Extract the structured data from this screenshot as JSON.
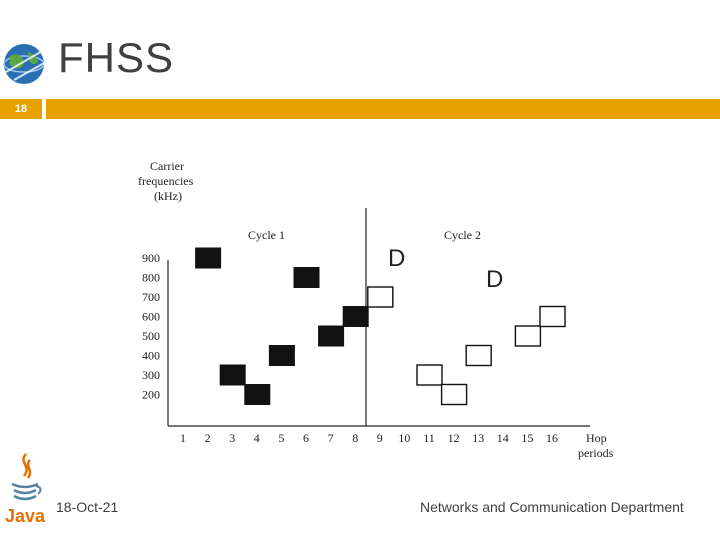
{
  "slide": {
    "title": "FHSS",
    "number": "18",
    "date": "18-Oct-21",
    "footer": "Networks and Communication Department",
    "java_logo_text": "Java"
  },
  "colors": {
    "accent": "#e8a200",
    "text": "#404040"
  },
  "chart_data": {
    "type": "diagram",
    "ylabel": [
      "Carrier",
      "frequencies",
      "(kHz)"
    ],
    "xlabel": [
      "Hop",
      "periods"
    ],
    "y_ticks": [
      900,
      800,
      700,
      600,
      500,
      400,
      300,
      200
    ],
    "x_ticks": [
      1,
      2,
      3,
      4,
      5,
      6,
      7,
      8,
      9,
      10,
      11,
      12,
      13,
      14,
      15,
      16
    ],
    "cycles": [
      {
        "label": "Cycle 1",
        "hops": [
          {
            "period": 2,
            "freq": 900
          },
          {
            "period": 3,
            "freq": 300
          },
          {
            "period": 4,
            "freq": 200
          },
          {
            "period": 5,
            "freq": 400
          },
          {
            "period": 6,
            "freq": 800
          },
          {
            "period": 7,
            "freq": 500
          },
          {
            "period": 8,
            "freq": 600
          }
        ]
      },
      {
        "label": "Cycle 2",
        "hops": [
          {
            "period": 9,
            "freq": 700
          },
          {
            "period": 11,
            "freq": 300
          },
          {
            "period": 12,
            "freq": 200
          },
          {
            "period": 13,
            "freq": 400
          },
          {
            "period": 15,
            "freq": 500
          },
          {
            "period": 16,
            "freq": 600
          }
        ]
      }
    ],
    "annotations": [
      "D",
      "D"
    ]
  }
}
